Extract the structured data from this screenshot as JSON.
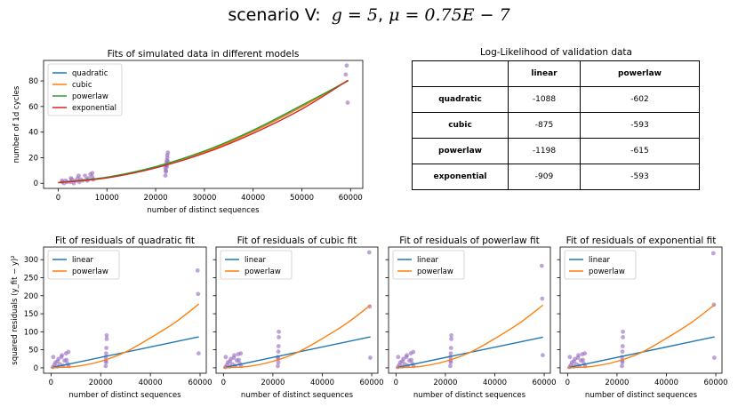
{
  "title": {
    "prefix": "scenario V:",
    "g_text": "g = 5",
    "mu_text": "μ = 0.75E − 7"
  },
  "colors": {
    "quadratic": "#1f77b4",
    "cubic": "#ff7f0e",
    "powerlaw": "#2ca02c",
    "exponential": "#d62728",
    "linear": "#1f77b4",
    "powerlaw_resid": "#ff7f0e",
    "scatter": "#9467bd"
  },
  "table": {
    "title": "Log-Likelihood of validation data",
    "columns": [
      "linear",
      "powerlaw"
    ],
    "rows": [
      {
        "label": "quadratic",
        "values": [
          "-1088",
          "-602"
        ]
      },
      {
        "label": "cubic",
        "values": [
          "-875",
          "-593"
        ]
      },
      {
        "label": "powerlaw",
        "values": [
          "-1198",
          "-615"
        ]
      },
      {
        "label": "exponential",
        "values": [
          "-909",
          "-593"
        ]
      }
    ]
  },
  "chart_data": [
    {
      "type": "scatter+line",
      "title": "Fits of simulated data in different models",
      "xlabel": "number of distinct sequences",
      "ylabel": "number of 1d cycles",
      "xlim": [
        -3000,
        62500
      ],
      "ylim": [
        -4,
        96
      ],
      "xticks": [
        0,
        10000,
        20000,
        30000,
        40000,
        50000,
        60000
      ],
      "yticks": [
        0,
        20,
        40,
        60,
        80
      ],
      "legend": [
        "quadratic",
        "cubic",
        "powerlaw",
        "exponential"
      ],
      "legend_loc": "upper-left",
      "points": {
        "x": [
          800,
          1200,
          1500,
          1800,
          2500,
          2800,
          3200,
          3500,
          4000,
          4300,
          4600,
          5000,
          5500,
          5800,
          6200,
          6600,
          7000,
          7200,
          800,
          2600,
          4200,
          6000,
          7000,
          22000,
          22100,
          22200,
          22300,
          22400,
          22500,
          22000,
          22200,
          22400,
          22100,
          22300,
          22500,
          59000,
          59200,
          59400
        ],
        "y": [
          1,
          0,
          2,
          1,
          1,
          3,
          0,
          2,
          4,
          1,
          3,
          2,
          6,
          3,
          4,
          7,
          5,
          3,
          2,
          4,
          6,
          2,
          8,
          6,
          10,
          14,
          18,
          22,
          24,
          12,
          16,
          20,
          9,
          13,
          17,
          85,
          92,
          63
        ]
      },
      "series": [
        {
          "name": "quadratic",
          "x": [
            0,
            10000,
            20000,
            30000,
            40000,
            50000,
            59500
          ],
          "y": [
            0.5,
            4.5,
            12.5,
            24.5,
            40.5,
            60.0,
            80.5
          ]
        },
        {
          "name": "cubic",
          "x": [
            0,
            10000,
            20000,
            30000,
            40000,
            50000,
            59500
          ],
          "y": [
            0.5,
            4.3,
            12.3,
            24.2,
            40.3,
            59.8,
            80.5
          ]
        },
        {
          "name": "powerlaw",
          "x": [
            0,
            10000,
            20000,
            30000,
            40000,
            50000,
            59500
          ],
          "y": [
            0.5,
            4.8,
            13.0,
            25.2,
            41.5,
            61.0,
            80.0
          ]
        },
        {
          "name": "exponential",
          "x": [
            0,
            10000,
            20000,
            30000,
            40000,
            50000,
            59500
          ],
          "y": [
            0.5,
            4.2,
            12.0,
            23.5,
            39.0,
            58.0,
            80.5
          ]
        }
      ]
    },
    {
      "type": "scatter+line",
      "title": "Fit of residuals of quadratic fit",
      "xlabel": "number of distinct sequences",
      "ylabel": "squared residuals (y_fit − y)²",
      "xlim": [
        -3000,
        62500
      ],
      "ylim": [
        -15,
        335
      ],
      "xticks": [
        0,
        20000,
        40000,
        60000
      ],
      "yticks": [
        0,
        50,
        100,
        150,
        200,
        250,
        300
      ],
      "legend": [
        "linear",
        "powerlaw"
      ],
      "points": {
        "x": [
          800,
          1300,
          1800,
          2500,
          3000,
          3600,
          4200,
          4800,
          5400,
          6000,
          6600,
          7100,
          900,
          2600,
          4400,
          6200,
          7000,
          22000,
          22100,
          22200,
          22300,
          22400,
          22000,
          22200,
          22400,
          59000,
          59200,
          59400
        ],
        "y": [
          2,
          8,
          15,
          4,
          25,
          10,
          30,
          6,
          20,
          40,
          12,
          5,
          30,
          18,
          35,
          22,
          44,
          5,
          20,
          40,
          55,
          90,
          30,
          15,
          80,
          270,
          205,
          40
        ]
      },
      "series": [
        {
          "name": "linear",
          "x": [
            0,
            59500
          ],
          "y": [
            0,
            86
          ]
        },
        {
          "name": "powerlaw",
          "x": [
            0,
            10000,
            20000,
            30000,
            40000,
            50000,
            59500
          ],
          "y": [
            0,
            4,
            18,
            44,
            83,
            126,
            177
          ]
        }
      ]
    },
    {
      "type": "scatter+line",
      "title": "Fit of residuals of cubic fit",
      "xlabel": "number of distinct sequences",
      "xlim": [
        -3000,
        62500
      ],
      "ylim": [
        -15,
        335
      ],
      "xticks": [
        0,
        20000,
        40000,
        60000
      ],
      "legend": [
        "linear",
        "powerlaw"
      ],
      "points": {
        "x": [
          800,
          1300,
          1800,
          2500,
          3000,
          3600,
          4200,
          4800,
          5400,
          6000,
          6600,
          7100,
          900,
          2600,
          4400,
          6200,
          7000,
          22000,
          22100,
          22200,
          22300,
          22400,
          22000,
          22200,
          22400,
          59000,
          59200,
          59400
        ],
        "y": [
          2,
          8,
          15,
          4,
          25,
          10,
          28,
          6,
          20,
          38,
          12,
          5,
          30,
          18,
          35,
          22,
          40,
          5,
          25,
          45,
          60,
          100,
          30,
          15,
          85,
          320,
          170,
          28
        ]
      },
      "series": [
        {
          "name": "linear",
          "x": [
            0,
            59500
          ],
          "y": [
            0,
            86
          ]
        },
        {
          "name": "powerlaw",
          "x": [
            0,
            10000,
            20000,
            30000,
            40000,
            50000,
            59500
          ],
          "y": [
            0,
            4,
            18,
            43,
            81,
            124,
            174
          ]
        }
      ]
    },
    {
      "type": "scatter+line",
      "title": "Fit of residuals of powerlaw fit",
      "xlabel": "number of distinct sequences",
      "xlim": [
        -3000,
        62500
      ],
      "ylim": [
        -15,
        335
      ],
      "xticks": [
        0,
        20000,
        40000,
        60000
      ],
      "legend": [
        "linear",
        "powerlaw"
      ],
      "points": {
        "x": [
          800,
          1300,
          1800,
          2500,
          3000,
          3600,
          4200,
          4800,
          5400,
          6000,
          6600,
          7100,
          900,
          2600,
          4400,
          6200,
          7000,
          22000,
          22100,
          22200,
          22300,
          22400,
          22000,
          22200,
          22400,
          59000,
          59200,
          59400
        ],
        "y": [
          2,
          8,
          15,
          4,
          25,
          10,
          30,
          6,
          20,
          40,
          12,
          5,
          30,
          18,
          35,
          22,
          44,
          5,
          20,
          40,
          55,
          90,
          30,
          15,
          80,
          283,
          192,
          35
        ]
      },
      "series": [
        {
          "name": "linear",
          "x": [
            0,
            59500
          ],
          "y": [
            0,
            85
          ]
        },
        {
          "name": "powerlaw",
          "x": [
            0,
            10000,
            20000,
            30000,
            40000,
            50000,
            59500
          ],
          "y": [
            0,
            4,
            18,
            43,
            81,
            124,
            174
          ]
        }
      ]
    },
    {
      "type": "scatter+line",
      "title": "Fit of residuals of exponential fit",
      "xlabel": "number of distinct sequences",
      "xlim": [
        -3000,
        62500
      ],
      "ylim": [
        -15,
        335
      ],
      "xticks": [
        0,
        20000,
        40000,
        60000
      ],
      "legend": [
        "linear",
        "powerlaw"
      ],
      "points": {
        "x": [
          800,
          1300,
          1800,
          2500,
          3000,
          3600,
          4200,
          4800,
          5400,
          6000,
          6600,
          7100,
          900,
          2600,
          4400,
          6200,
          7000,
          22000,
          22100,
          22200,
          22300,
          22400,
          22000,
          22200,
          22400,
          59000,
          59200,
          59400
        ],
        "y": [
          2,
          8,
          15,
          4,
          25,
          10,
          28,
          6,
          20,
          38,
          12,
          5,
          30,
          18,
          35,
          22,
          40,
          5,
          20,
          45,
          60,
          100,
          30,
          15,
          85,
          318,
          175,
          28
        ]
      },
      "series": [
        {
          "name": "linear",
          "x": [
            0,
            59500
          ],
          "y": [
            0,
            86
          ]
        },
        {
          "name": "powerlaw",
          "x": [
            0,
            10000,
            20000,
            30000,
            40000,
            50000,
            59500
          ],
          "y": [
            0,
            4,
            18,
            43,
            82,
            125,
            175
          ]
        }
      ]
    }
  ]
}
